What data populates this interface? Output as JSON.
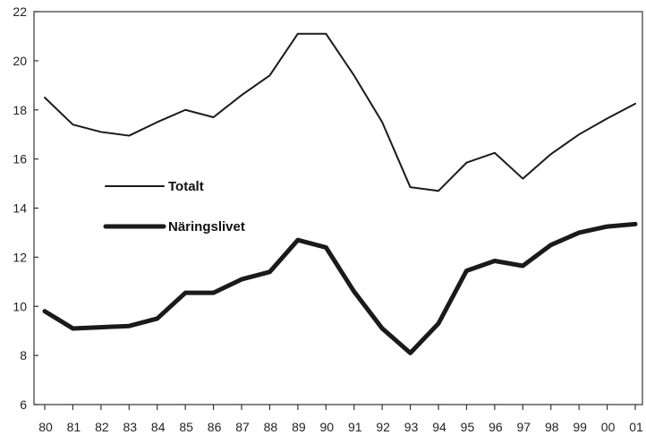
{
  "chart_data": {
    "type": "line",
    "title": "",
    "xlabel": "",
    "ylabel": "",
    "categories": [
      "80",
      "81",
      "82",
      "83",
      "84",
      "85",
      "86",
      "87",
      "88",
      "89",
      "90",
      "91",
      "92",
      "93",
      "94",
      "95",
      "96",
      "97",
      "98",
      "99",
      "00",
      "01"
    ],
    "ylim": [
      6,
      22
    ],
    "yticks": [
      6,
      8,
      10,
      12,
      14,
      16,
      18,
      20,
      22
    ],
    "grid": false,
    "legend_position": "center-left",
    "series": [
      {
        "name": "Totalt",
        "values": [
          18.5,
          17.4,
          17.1,
          16.95,
          17.5,
          18.0,
          17.7,
          18.6,
          19.4,
          21.1,
          21.1,
          19.4,
          17.5,
          14.85,
          14.7,
          15.85,
          16.25,
          15.2,
          16.2,
          17.0,
          17.65,
          18.25
        ],
        "color": "#1a1a1a",
        "line_style": "thin"
      },
      {
        "name": "Näringslivet",
        "values": [
          9.8,
          9.1,
          9.15,
          9.2,
          9.5,
          10.55,
          10.55,
          11.1,
          11.4,
          12.7,
          12.4,
          10.6,
          9.1,
          8.1,
          9.3,
          11.45,
          11.85,
          11.65,
          12.5,
          13.0,
          13.25,
          13.35
        ],
        "color": "#1a1a1a",
        "line_style": "thick"
      }
    ]
  }
}
